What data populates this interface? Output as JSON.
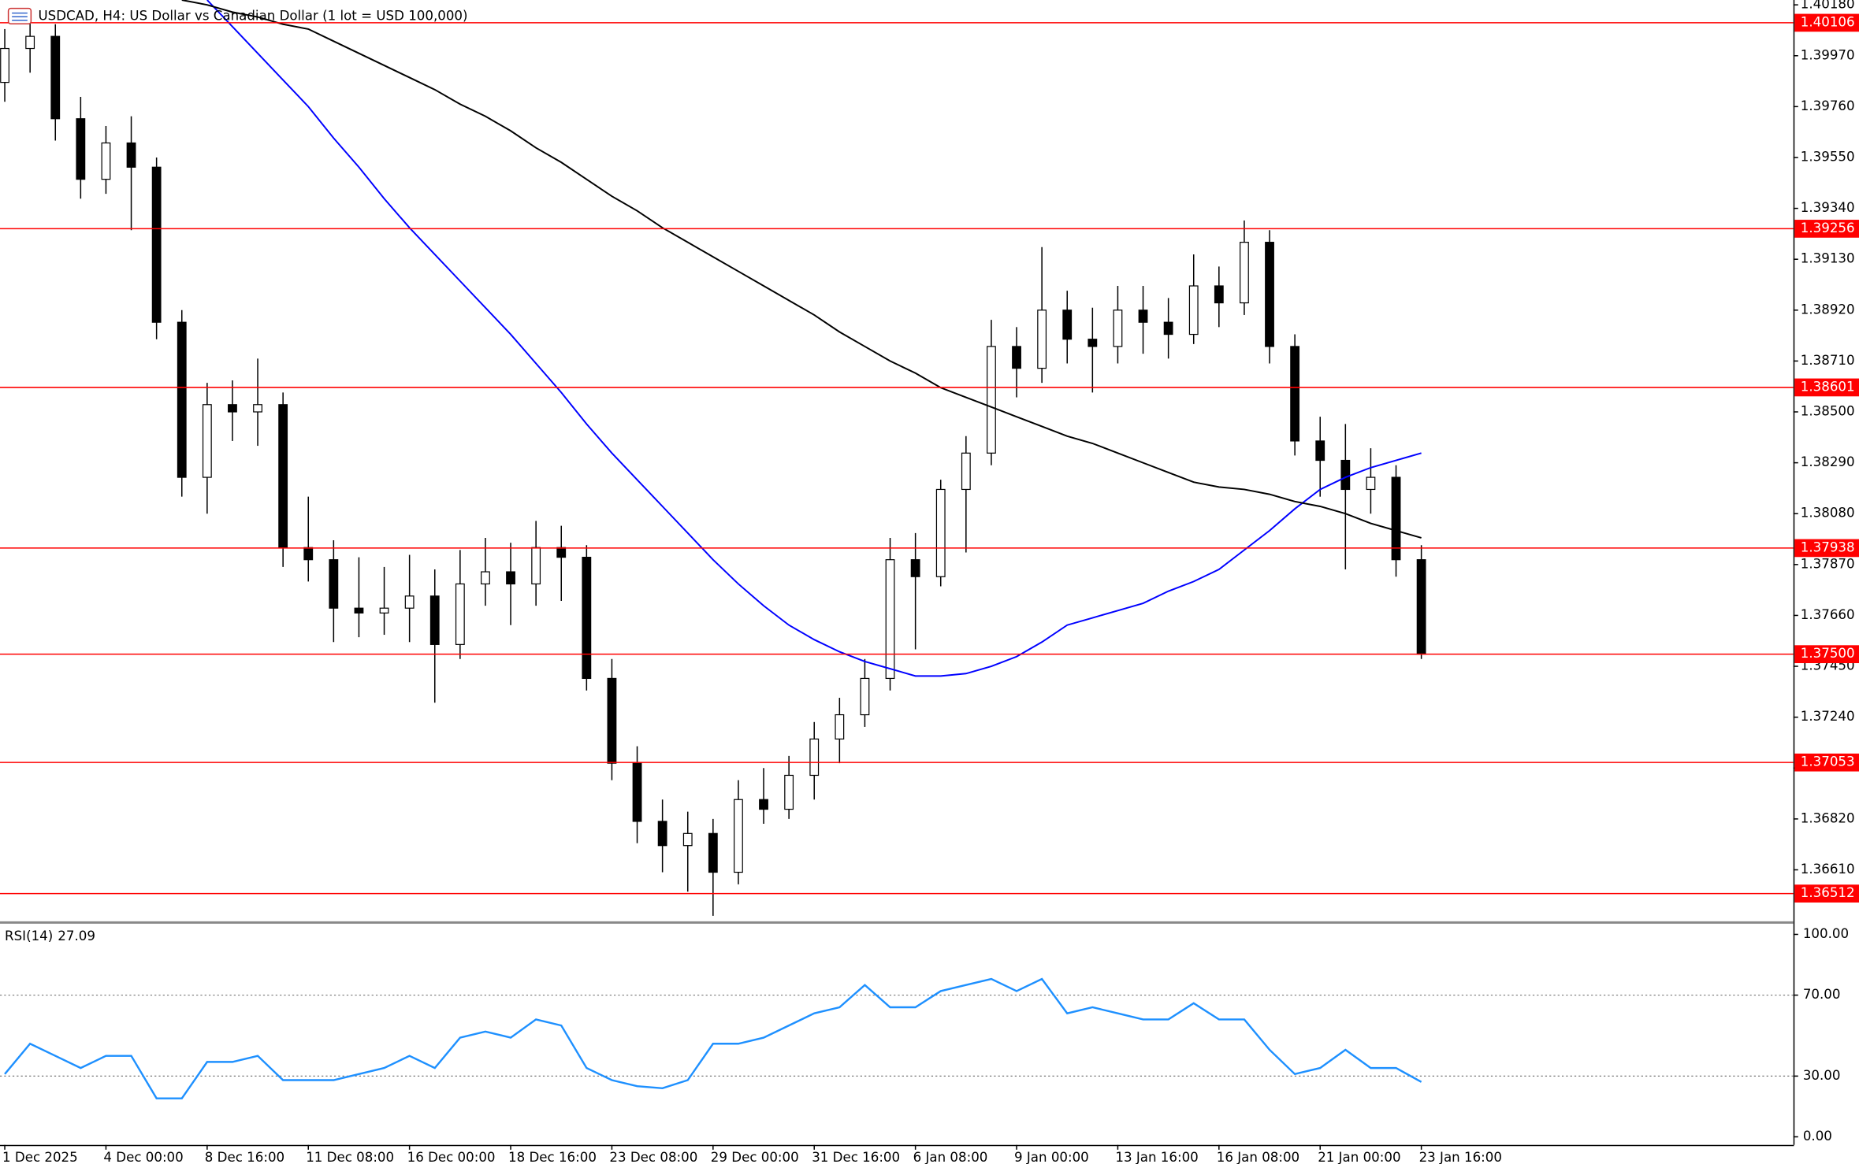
{
  "chart_data": {
    "type": "candlestick",
    "title": "USDCAD, H4:  US Dollar vs Canadian Dollar (1 lot = USD 100,000)",
    "categories": [
      "1 Dec 2025",
      null,
      null,
      null,
      "4 Dec 00:00",
      null,
      null,
      null,
      "8 Dec 16:00",
      null,
      null,
      null,
      "11 Dec 08:00",
      null,
      null,
      null,
      "16 Dec 00:00",
      null,
      null,
      null,
      "18 Dec 16:00",
      null,
      null,
      null,
      "23 Dec 08:00",
      null,
      null,
      null,
      "29 Dec 00:00",
      null,
      null,
      null,
      "31 Dec 16:00",
      null,
      null,
      null,
      "6 Jan 08:00",
      null,
      null,
      null,
      "9 Jan 00:00",
      null,
      null,
      null,
      "13 Jan 16:00",
      null,
      null,
      null,
      "16 Jan 08:00",
      null,
      null,
      null,
      "21 Jan 00:00",
      null,
      null,
      null,
      "23 Jan 16:00"
    ],
    "open": [
      1.3986,
      1.4,
      1.4005,
      1.3971,
      1.3946,
      1.3961,
      1.3951,
      1.3887,
      1.3823,
      1.3853,
      1.385,
      1.3853,
      1.3794,
      1.3789,
      1.3769,
      1.3767,
      1.3769,
      1.3774,
      1.3754,
      1.3779,
      1.3784,
      1.3779,
      1.3794,
      1.379,
      1.374,
      1.3705,
      1.3681,
      1.3671,
      1.3676,
      1.366,
      1.369,
      1.3686,
      1.37,
      1.3715,
      1.3725,
      1.374,
      1.3789,
      1.3782,
      1.3818,
      1.3833,
      1.3877,
      1.3868,
      1.3892,
      1.388,
      1.3877,
      1.3892,
      1.3887,
      1.3882,
      1.3902,
      1.3895,
      1.392,
      1.3877,
      1.3838,
      1.383,
      1.3818,
      1.3823,
      1.3789
    ],
    "high": [
      1.4008,
      1.4015,
      1.401,
      1.398,
      1.3968,
      1.3972,
      1.3955,
      1.3892,
      1.3862,
      1.3863,
      1.3872,
      1.3858,
      1.3815,
      1.3797,
      1.379,
      1.3786,
      1.3791,
      1.3785,
      1.3793,
      1.3798,
      1.3796,
      1.3805,
      1.3803,
      1.3795,
      1.3748,
      1.3712,
      1.369,
      1.3685,
      1.3682,
      1.3698,
      1.3703,
      1.3708,
      1.3722,
      1.3732,
      1.3748,
      1.3798,
      1.38,
      1.3822,
      1.384,
      1.3888,
      1.3885,
      1.3918,
      1.39,
      1.3893,
      1.3902,
      1.3902,
      1.3897,
      1.3915,
      1.391,
      1.3929,
      1.3925,
      1.3882,
      1.3848,
      1.3845,
      1.3835,
      1.3828,
      1.3795
    ],
    "low": [
      1.3978,
      1.399,
      1.3962,
      1.3938,
      1.394,
      1.3925,
      1.388,
      1.3815,
      1.3808,
      1.3838,
      1.3836,
      1.3786,
      1.378,
      1.3755,
      1.3757,
      1.3758,
      1.3755,
      1.373,
      1.3748,
      1.377,
      1.3762,
      1.377,
      1.3772,
      1.3735,
      1.3698,
      1.3672,
      1.366,
      1.3652,
      1.3642,
      1.3655,
      1.368,
      1.3682,
      1.369,
      1.3705,
      1.372,
      1.3735,
      1.3752,
      1.3778,
      1.3792,
      1.3828,
      1.3856,
      1.3862,
      1.387,
      1.3858,
      1.387,
      1.3874,
      1.3872,
      1.3878,
      1.3885,
      1.389,
      1.387,
      1.3832,
      1.3815,
      1.3785,
      1.3808,
      1.3782,
      1.3748
    ],
    "close": [
      1.4,
      1.4005,
      1.3971,
      1.3946,
      1.3961,
      1.3951,
      1.3887,
      1.3823,
      1.3853,
      1.385,
      1.3853,
      1.3794,
      1.3789,
      1.3769,
      1.3767,
      1.3769,
      1.3774,
      1.3754,
      1.3779,
      1.3784,
      1.3779,
      1.3794,
      1.379,
      1.374,
      1.3705,
      1.3681,
      1.3671,
      1.3676,
      1.366,
      1.369,
      1.3686,
      1.37,
      1.3715,
      1.3725,
      1.374,
      1.3789,
      1.3782,
      1.3818,
      1.3833,
      1.3877,
      1.3868,
      1.3892,
      1.388,
      1.3877,
      1.3892,
      1.3887,
      1.3882,
      1.3902,
      1.3895,
      1.392,
      1.3877,
      1.3838,
      1.383,
      1.3818,
      1.3823,
      1.3789,
      1.375
    ],
    "ylim": [
      1.364,
      1.402
    ],
    "yticks": [
      {
        "value": 1.4018,
        "label": "1.40180"
      },
      {
        "value": 1.3997,
        "label": "1.39970"
      },
      {
        "value": 1.3976,
        "label": "1.39760"
      },
      {
        "value": 1.3955,
        "label": "1.39550"
      },
      {
        "value": 1.3934,
        "label": "1.39340"
      },
      {
        "value": 1.3913,
        "label": "1.39130"
      },
      {
        "value": 1.3892,
        "label": "1.38920"
      },
      {
        "value": 1.3871,
        "label": "1.38710"
      },
      {
        "value": 1.385,
        "label": "1.38500"
      },
      {
        "value": 1.3829,
        "label": "1.38290"
      },
      {
        "value": 1.3808,
        "label": "1.38080"
      },
      {
        "value": 1.3787,
        "label": "1.37870"
      },
      {
        "value": 1.3766,
        "label": "1.37660"
      },
      {
        "value": 1.3745,
        "label": "1.37450"
      },
      {
        "value": 1.3724,
        "label": "1.37240"
      },
      {
        "value": 1.3703,
        "label": "1.37030"
      },
      {
        "value": 1.3682,
        "label": "1.36820"
      },
      {
        "value": 1.3661,
        "label": "1.36610"
      }
    ],
    "levels": {
      "color": "#ff0000",
      "values": [
        1.40106,
        1.39256,
        1.38601,
        1.37938,
        {
          "value": 1.375,
          "label": "1.37500"
        },
        1.37053,
        1.36512
      ]
    },
    "series": [
      {
        "color": "#0000ff",
        "values": [
          null,
          null,
          null,
          null,
          null,
          null,
          null,
          null,
          1.402,
          1.4009,
          1.3998,
          1.3987,
          1.3976,
          1.3963,
          1.3951,
          1.3938,
          1.3926,
          1.3915,
          1.3904,
          1.3893,
          1.3882,
          1.387,
          1.3858,
          1.3845,
          1.3833,
          1.3822,
          1.3811,
          1.38,
          1.3789,
          1.3779,
          1.377,
          1.3762,
          1.3756,
          1.3751,
          1.3747,
          1.3744,
          1.3741,
          1.3741,
          1.3742,
          1.3745,
          1.3749,
          1.3755,
          1.3762,
          1.3765,
          1.3768,
          1.3771,
          1.3776,
          1.378,
          1.3785,
          1.3793,
          1.3801,
          1.381,
          1.3818,
          1.3823,
          1.3827,
          1.383,
          1.3833
        ]
      },
      {
        "color": "#000000",
        "values": [
          null,
          null,
          null,
          null,
          null,
          null,
          null,
          1.402,
          1.4018,
          1.4015,
          1.4013,
          1.401,
          1.4008,
          1.4003,
          1.3998,
          1.3993,
          1.3988,
          1.3983,
          1.3977,
          1.3972,
          1.3966,
          1.3959,
          1.3953,
          1.3946,
          1.3939,
          1.3933,
          1.3926,
          1.392,
          1.3914,
          1.3908,
          1.3902,
          1.3896,
          1.389,
          1.3883,
          1.3877,
          1.3871,
          1.3866,
          1.386,
          1.3856,
          1.3852,
          1.3848,
          1.3844,
          1.384,
          1.3837,
          1.3833,
          1.3829,
          1.3825,
          1.3821,
          1.3819,
          1.3818,
          1.3816,
          1.3813,
          1.3811,
          1.3808,
          1.3804,
          1.3801,
          1.3798
        ]
      }
    ],
    "rsi": {
      "name": "RSI(14)",
      "color": "#1e90ff",
      "values": [
        31,
        46,
        40,
        34,
        40,
        40,
        19,
        19,
        37,
        37,
        40,
        28,
        28,
        28,
        31,
        34,
        40,
        34,
        49,
        52,
        49,
        58,
        55,
        34,
        28,
        25,
        24,
        28,
        46,
        46,
        49,
        55,
        61,
        64,
        75,
        64,
        64,
        72,
        75,
        78,
        72,
        78,
        61,
        64,
        61,
        58,
        58,
        66,
        58,
        58,
        43,
        31,
        34,
        43,
        34,
        34,
        27.09
      ],
      "ylim": [
        -4,
        105
      ],
      "yticks": [
        {
          "value": 100,
          "label": "100.00"
        },
        {
          "value": 70,
          "label": "70.00"
        },
        {
          "value": 30,
          "label": "30.00"
        },
        {
          "value": 0,
          "label": "0.00"
        }
      ]
    }
  }
}
